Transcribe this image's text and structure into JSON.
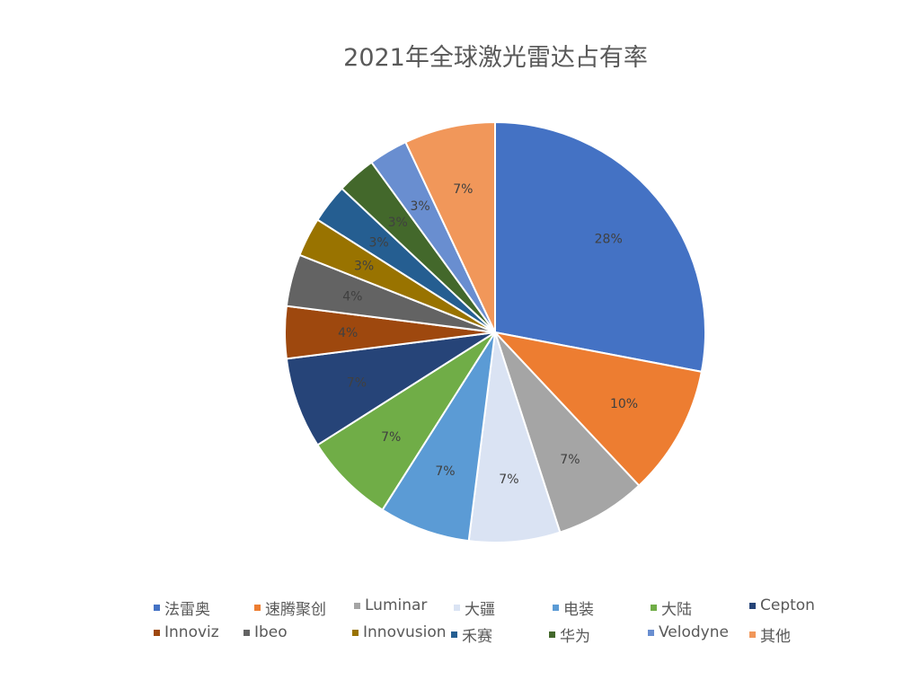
{
  "chart_data": {
    "type": "pie",
    "title": "2021年全球激光雷达占有率",
    "legend_position": "bottom",
    "categories": [
      "法雷奥",
      "速腾聚创",
      "Luminar",
      "大疆",
      "电装",
      "大陆",
      "Cepton",
      "Innoviz",
      "Ibeo",
      "Innovusion",
      "禾赛",
      "华为",
      "Velodyne",
      "其他"
    ],
    "values": [
      28,
      10,
      7,
      7,
      7,
      7,
      7,
      4,
      4,
      3,
      3,
      3,
      3,
      7
    ],
    "labels": [
      "28%",
      "10%",
      "7%",
      "7%",
      "7%",
      "7%",
      "7%",
      "4%",
      "4%",
      "3%",
      "3%",
      "3%",
      "3%",
      "7%"
    ],
    "colors": [
      "#4472C4",
      "#ED7D31",
      "#A5A5A5",
      "#DAE3F3",
      "#5B9BD5",
      "#70AD47",
      "#264478",
      "#9E480E",
      "#636363",
      "#997300",
      "#255E91",
      "#43682B",
      "#698ED0",
      "#F1975A"
    ]
  }
}
